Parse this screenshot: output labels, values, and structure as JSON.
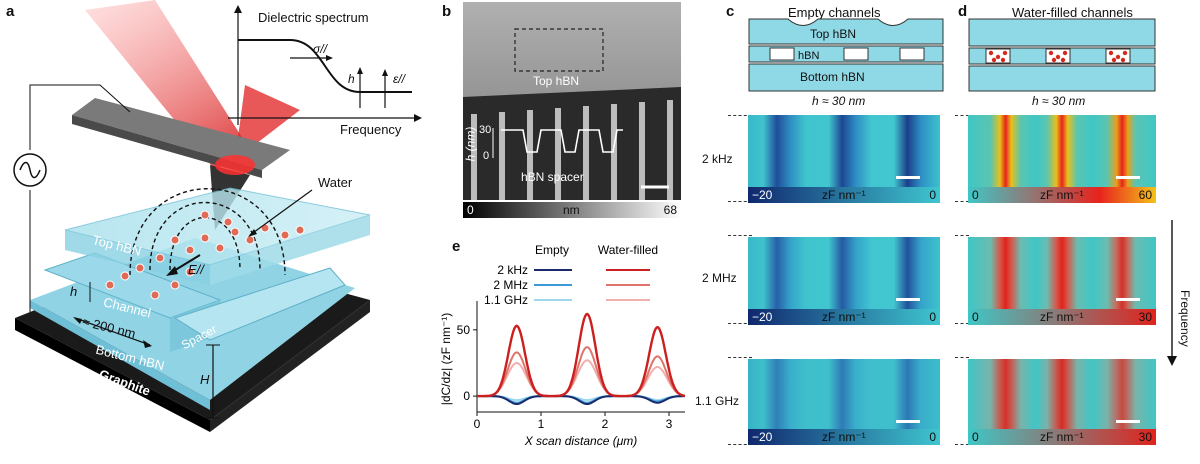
{
  "panel_labels": [
    "a",
    "b",
    "c",
    "d",
    "e"
  ],
  "panel_a": {
    "spectrum_title": "Dielectric spectrum",
    "sigma": "σ//",
    "h": "h",
    "eps": "ε//",
    "frequency": "Frequency",
    "water": "Water",
    "top_hbn": "Top hBN",
    "e_field": "E//",
    "channel": "Channel",
    "h_small": "h",
    "width": "≈ 200 nm",
    "spacer": "Spacer",
    "bottom_hbn": "Bottom hBN",
    "graphite": "Graphite",
    "H": "H"
  },
  "panel_b": {
    "top_hbn": "Top hBN",
    "h_axis": "h (nm)",
    "tick_30": "30",
    "tick_0": "0",
    "spacer": "hBN spacer",
    "scale_min": "0",
    "scale_unit": "nm",
    "scale_max": "68"
  },
  "panel_c": {
    "title": "Empty channels",
    "top_hbn": "Top hBN",
    "hbn": "hBN",
    "bottom_hbn": "Bottom  hBN",
    "h_label": "h ≈ 30 nm",
    "rows": [
      {
        "freq": "2 kHz",
        "min": "−20",
        "unit": "zF nm⁻¹",
        "max": "0"
      },
      {
        "freq": "2 MHz",
        "min": "−20",
        "unit": "zF nm⁻¹",
        "max": "0"
      },
      {
        "freq": "1.1 GHz",
        "min": "−20",
        "unit": "zF nm⁻¹",
        "max": "0"
      }
    ]
  },
  "panel_d": {
    "title": "Water-filled channels",
    "h_label": "h ≈ 30 nm",
    "rows": [
      {
        "min": "0",
        "unit": "zF nm⁻¹",
        "max": "60"
      },
      {
        "min": "0",
        "unit": "zF nm⁻¹",
        "max": "30"
      },
      {
        "min": "0",
        "unit": "zF nm⁻¹",
        "max": "30"
      }
    ],
    "frequency": "Frequency"
  },
  "colors": {
    "empty_map": "#39c4cf",
    "water_base": "#3fc6c6",
    "water_peak": "#e8231d",
    "hbn_fill": "#8fd8e6"
  },
  "chart_data": {
    "type": "line",
    "xlabel": "X scan distance (μm)",
    "ylabel": "|dC/dz| (zF nm⁻¹)",
    "xlim": [
      0,
      3.25
    ],
    "ylim": [
      -12,
      68
    ],
    "xticks": [
      0,
      1,
      2,
      3
    ],
    "yticks": [
      0,
      50
    ],
    "legend_headers": [
      "Empty",
      "Water-filled"
    ],
    "legend_rows": [
      "2 kHz",
      "2 MHz",
      "1.1 GHz"
    ],
    "peak_positions": [
      0.62,
      1.72,
      2.82
    ],
    "series": [
      {
        "name": "2 kHz",
        "group": "Water-filled",
        "color": "#cc1f1f",
        "peaks": [
          53,
          62,
          52
        ],
        "width": 0.13
      },
      {
        "name": "2 MHz",
        "group": "Water-filled",
        "color": "#e0736a",
        "peaks": [
          33,
          37,
          30
        ],
        "width": 0.14
      },
      {
        "name": "1.1 GHz",
        "group": "Water-filled",
        "color": "#f0b0ad",
        "peaks": [
          25,
          27,
          22
        ],
        "width": 0.15
      },
      {
        "name": "2 kHz",
        "group": "Empty",
        "color": "#1b2a6b",
        "peaks": [
          -6,
          -6,
          -5
        ],
        "width": 0.12
      },
      {
        "name": "2 MHz",
        "group": "Empty",
        "color": "#3e9ad6",
        "peaks": [
          -5,
          -5,
          -4
        ],
        "width": 0.12
      },
      {
        "name": "1.1 GHz",
        "group": "Empty",
        "color": "#9fd8ee",
        "peaks": [
          -3,
          -3,
          -3
        ],
        "width": 0.12
      }
    ]
  }
}
